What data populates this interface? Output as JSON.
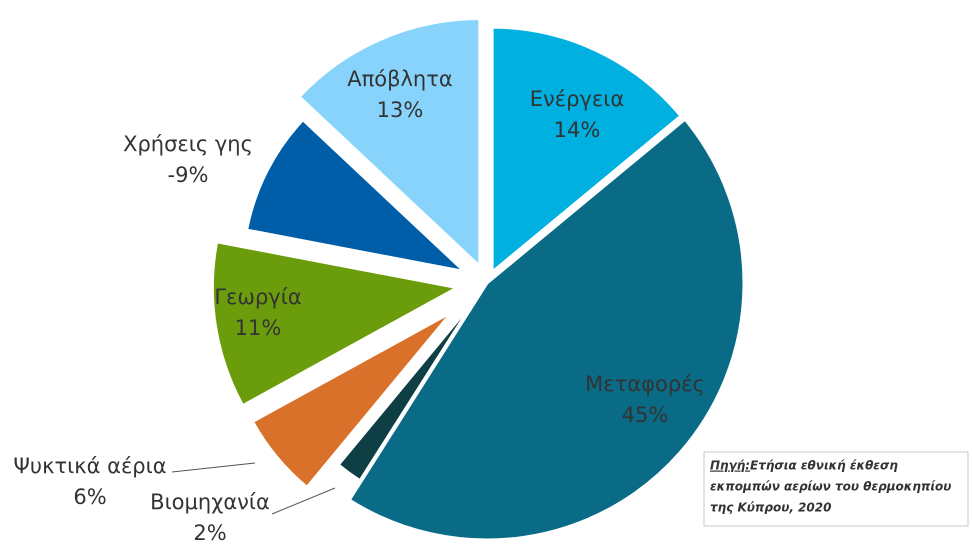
{
  "chart_data": {
    "type": "pie",
    "categories": [
      "Ενέργεια",
      "Μεταφορές",
      "Βιομηχανία",
      "Ψυκτικά αέρια",
      "Γεωργία",
      "Χρήσεις γης",
      "Απόβλητα"
    ],
    "values": [
      14,
      45,
      2,
      6,
      11,
      -9,
      13
    ],
    "value_labels": [
      "14%",
      "45%",
      "2%",
      "6%",
      "11%",
      "-9%",
      "13%"
    ],
    "colors": [
      "#00b0e0",
      "#0a6b86",
      "#0d3f45",
      "#d9712b",
      "#6b9c0b",
      "#005ea8",
      "#87d3fb"
    ],
    "source_prefix": "Πηγή:",
    "source_lines": [
      "Ετήσια εθνική έκθεση",
      "εκπομπών αερίων του θερμοκηπίου",
      "της Κύπρου, 2020"
    ]
  }
}
